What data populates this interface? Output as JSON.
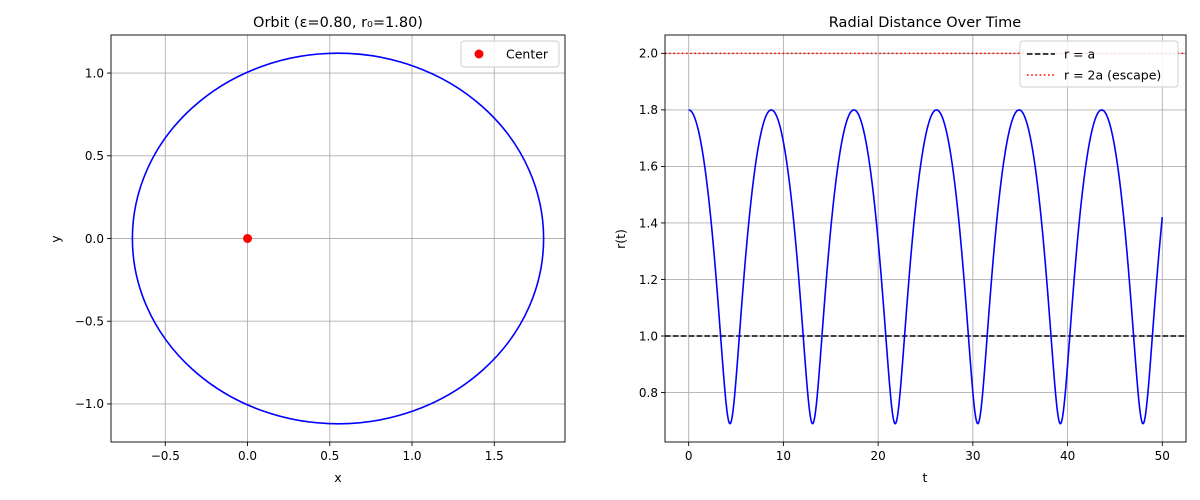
{
  "chart_data": [
    {
      "type": "line",
      "title": "Orbit (ε=0.80, r₀=1.80)",
      "xlabel": "x",
      "ylabel": "y",
      "xlim": [
        -0.83,
        1.93
      ],
      "ylim": [
        -1.23,
        1.23
      ],
      "x_ticks": [
        -0.5,
        0.0,
        0.5,
        1.0,
        1.5
      ],
      "y_ticks": [
        -1.0,
        -0.5,
        0.0,
        0.5,
        1.0
      ],
      "x_tick_labels": [
        "−0.5",
        "0.0",
        "0.5",
        "1.0",
        "1.5"
      ],
      "y_tick_labels": [
        "−1.0",
        "−0.5",
        "0.0",
        "0.5",
        "1.0"
      ],
      "grid": true,
      "legend_position": "top-right",
      "series": [
        {
          "kind": "ellipse",
          "color": "#0000ff",
          "center": [
            0.55,
            0.0
          ],
          "x_range": [
            -0.7,
            1.8
          ],
          "y_range": [
            -1.12,
            1.12
          ]
        },
        {
          "kind": "marker",
          "name": "Center",
          "color": "#ff0000",
          "x": [
            0.0
          ],
          "y": [
            0.0
          ]
        }
      ]
    },
    {
      "type": "line",
      "title": "Radial Distance Over Time",
      "xlabel": "t",
      "ylabel": "r(t)",
      "xlim": [
        -2.5,
        52.5
      ],
      "ylim": [
        0.625,
        2.065
      ],
      "x_ticks": [
        0,
        10,
        20,
        30,
        40,
        50
      ],
      "y_ticks": [
        0.8,
        1.0,
        1.2,
        1.4,
        1.6,
        1.8,
        2.0
      ],
      "x_tick_labels": [
        "0",
        "10",
        "20",
        "30",
        "40",
        "50"
      ],
      "y_tick_labels": [
        "0.8",
        "1.0",
        "1.2",
        "1.4",
        "1.6",
        "1.8",
        "2.0"
      ],
      "grid": true,
      "legend_position": "top-right",
      "series": [
        {
          "kind": "curve",
          "color": "#0000ff",
          "t_range": [
            0,
            50
          ],
          "r_max": 1.8,
          "r_min": 0.69,
          "period": 8.72,
          "end_value": 1.38
        },
        {
          "kind": "hline",
          "name": "r = a",
          "color": "#000000",
          "style": "dashed",
          "y": 1.0
        },
        {
          "kind": "hline",
          "name": "r = 2a (escape)",
          "color": "#ff0000",
          "style": "dotted",
          "y": 2.0
        }
      ]
    }
  ]
}
